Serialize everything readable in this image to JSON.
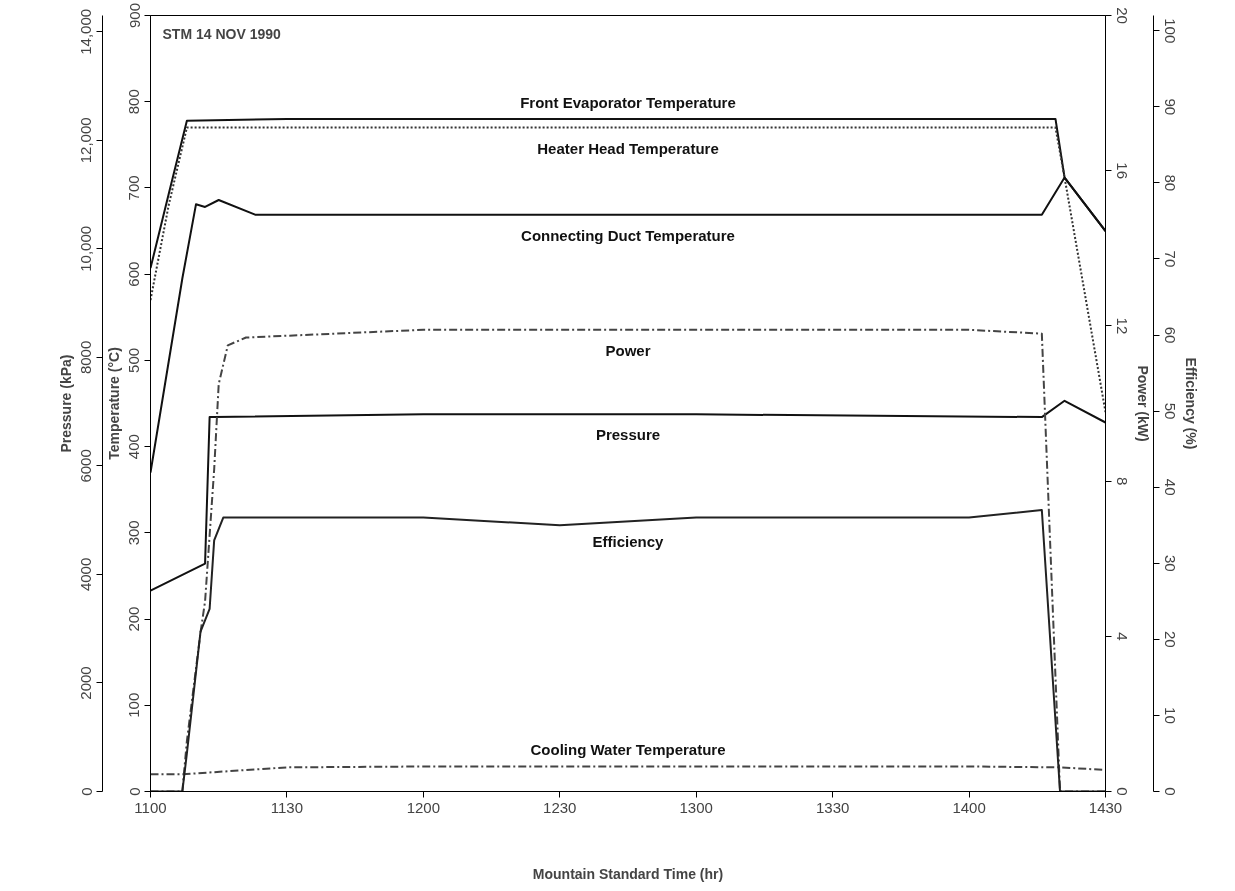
{
  "chart_data": [
    {
      "type": "line",
      "xlabel": "Mountain Standard Time (hr)",
      "ylabel": "Temperature (°C)",
      "y2label": "Pressure (kPa)",
      "annotations": [
        "STM 14 NOV 1990"
      ],
      "xlim": [
        "1990-11-14T11:00",
        "1990-11-14T14:30"
      ],
      "xticks": [
        {
          "value": "1990-11-14T11:00",
          "label": "1100"
        },
        {
          "value": "1990-11-14T11:30",
          "label": "1130"
        },
        {
          "value": "1990-11-14T12:00",
          "label": "1200"
        },
        {
          "value": "1990-11-14T12:30",
          "label": "1230"
        },
        {
          "value": "1990-11-14T13:00",
          "label": "1300"
        },
        {
          "value": "1990-11-14T13:30",
          "label": "1330"
        },
        {
          "value": "1990-11-14T14:00",
          "label": "1400"
        },
        {
          "value": "1990-11-14T14:30",
          "label": "1430"
        }
      ],
      "ylim": [
        0,
        900
      ],
      "yticks": [
        0,
        100,
        200,
        300,
        400,
        500,
        600,
        700,
        800,
        900
      ],
      "y2lim": [
        0,
        14300
      ],
      "y2ticks": [
        0,
        2000,
        4000,
        6000,
        8000,
        {
          "value": 10000,
          "label": "10,000"
        },
        {
          "value": 12000,
          "label": "12,000"
        },
        {
          "value": 14000,
          "label": "14,000"
        }
      ],
      "grid": false,
      "series": [
        {
          "name": "Front Evaporator Temperature",
          "color": "#111111",
          "line_style": "solid",
          "x": [
            "1990-11-14T11:00",
            "1990-11-14T11:04",
            "1990-11-14T11:08",
            "1990-11-14T11:30",
            "1990-11-14T12:30",
            "1990-11-14T13:30",
            "1990-11-14T14:19",
            "1990-11-14T14:21",
            "1990-11-14T14:30"
          ],
          "values": [
            607,
            693,
            778,
            780,
            780,
            780,
            780,
            712,
            650
          ]
        },
        {
          "name": "Heater Head Temperature",
          "color": "#333333",
          "line_style": "dotted",
          "x": [
            "1990-11-14T11:00",
            "1990-11-14T11:04",
            "1990-11-14T11:08",
            "1990-11-14T11:30",
            "1990-11-14T12:30",
            "1990-11-14T13:30",
            "1990-11-14T14:19",
            "1990-11-14T14:21",
            "1990-11-14T14:30"
          ],
          "values": [
            570,
            680,
            770,
            770,
            770,
            770,
            770,
            712,
            440
          ]
        },
        {
          "name": "Connecting Duct Temperature",
          "color": "#111111",
          "line_style": "solid",
          "x": [
            "1990-11-14T11:00",
            "1990-11-14T11:07",
            "1990-11-14T11:10",
            "1990-11-14T11:12",
            "1990-11-14T11:15",
            "1990-11-14T11:23",
            "1990-11-14T12:30",
            "1990-11-14T13:30",
            "1990-11-14T14:16",
            "1990-11-14T14:21",
            "1990-11-14T14:30"
          ],
          "values": [
            370,
            595,
            681,
            678,
            686,
            669,
            669,
            669,
            669,
            712,
            650
          ]
        },
        {
          "name": "Pressure",
          "color": "#111111",
          "line_style": "solid",
          "axis": "y2",
          "x": [
            "1990-11-14T11:00",
            "1990-11-14T11:12",
            "1990-11-14T11:13",
            "1990-11-14T11:14",
            "1990-11-14T12:00",
            "1990-11-14T13:00",
            "1990-11-14T14:16",
            "1990-11-14T14:21",
            "1990-11-14T14:30"
          ],
          "values": [
            3700,
            4200,
            6900,
            6900,
            6950,
            6950,
            6900,
            7200,
            6800
          ]
        },
        {
          "name": "Cooling Water Temperature",
          "color": "#444444",
          "line_style": "dashed",
          "x": [
            "1990-11-14T11:00",
            "1990-11-14T11:07",
            "1990-11-14T11:30",
            "1990-11-14T12:00",
            "1990-11-14T13:00",
            "1990-11-14T14:00",
            "1990-11-14T14:20",
            "1990-11-14T14:30"
          ],
          "values": [
            20,
            20,
            28,
            29,
            29,
            29,
            28,
            25
          ]
        }
      ]
    },
    {
      "type": "line",
      "ylabel": "Power (kW)",
      "y2label": "Efficiency (%)",
      "tick_labels": "y",
      "xlim": [
        "1990-11-14T11:00",
        "1990-11-14T14:30"
      ],
      "ylim": [
        0,
        20
      ],
      "yticks": [
        0,
        4,
        8,
        12,
        16,
        20
      ],
      "y2lim": [
        0,
        102
      ],
      "y2ticks": [
        0,
        10,
        20,
        30,
        40,
        50,
        60,
        70,
        80,
        90,
        100
      ],
      "grid": false,
      "series": [
        {
          "name": "Power",
          "color": "#444444",
          "line_style": "dashed",
          "x": [
            "1990-11-14T11:00",
            "1990-11-14T11:07",
            "1990-11-14T11:08",
            "1990-11-14T11:11",
            "1990-11-14T11:12",
            "1990-11-14T11:14",
            "1990-11-14T11:15",
            "1990-11-14T11:17",
            "1990-11-14T11:21",
            "1990-11-14T12:00",
            "1990-11-14T13:00",
            "1990-11-14T14:00",
            "1990-11-14T14:16",
            "1990-11-14T14:20",
            "1990-11-14T14:30"
          ],
          "values": [
            0,
            0,
            1.3,
            4.1,
            4.9,
            8.3,
            10.5,
            11.5,
            11.7,
            11.9,
            11.9,
            11.9,
            11.8,
            0,
            0
          ]
        },
        {
          "name": "Efficiency",
          "color": "#222222",
          "line_style": "solid",
          "axis": "y2",
          "x": [
            "1990-11-14T11:00",
            "1990-11-14T11:07",
            "1990-11-14T11:08",
            "1990-11-14T11:11",
            "1990-11-14T11:13",
            "1990-11-14T11:14",
            "1990-11-14T11:16",
            "1990-11-14T11:30",
            "1990-11-14T12:00",
            "1990-11-14T12:30",
            "1990-11-14T13:00",
            "1990-11-14T13:30",
            "1990-11-14T14:00",
            "1990-11-14T14:16",
            "1990-11-14T14:20",
            "1990-11-14T14:30"
          ],
          "values": [
            0,
            0,
            5,
            21,
            24,
            33,
            36,
            36,
            36,
            35,
            36,
            36,
            36,
            37,
            0,
            0
          ]
        }
      ]
    }
  ]
}
